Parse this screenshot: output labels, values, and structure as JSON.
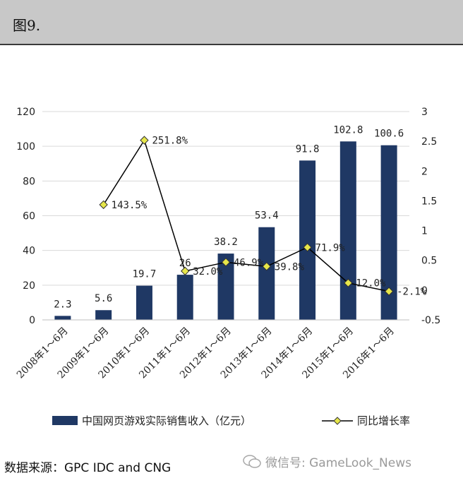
{
  "header": {
    "title": "图9."
  },
  "chart_data": {
    "type": "bar+line",
    "categories": [
      "2008年1～6月",
      "2009年1～6月",
      "2010年1～6月",
      "2011年1～6月",
      "2012年1～6月",
      "2013年1～6月",
      "2014年1～6月",
      "2015年1～6月",
      "2016年1～6月"
    ],
    "series": [
      {
        "name": "中国网页游戏实际销售收入（亿元）",
        "type": "bar",
        "axis": "left",
        "values": [
          2.3,
          5.6,
          19.7,
          26,
          38.2,
          53.4,
          91.8,
          102.8,
          100.6
        ],
        "labels": [
          "2.3",
          "5.6",
          "19.7",
          "26",
          "38.2",
          "53.4",
          "91.8",
          "102.8",
          "100.6"
        ],
        "color": "#1f3864"
      },
      {
        "name": "同比增长率",
        "type": "line",
        "axis": "right",
        "values": [
          null,
          1.435,
          2.518,
          0.32,
          0.469,
          0.398,
          0.719,
          0.12,
          -0.021
        ],
        "labels": [
          "",
          "143.5%",
          "251.8%",
          "32.0%",
          "46.9%",
          "39.8%",
          "71.9%",
          "12.0%",
          "-2.1%"
        ],
        "color": "#000000",
        "marker_color": "#e6e64a"
      }
    ],
    "y_left": {
      "min": 0,
      "max": 120,
      "ticks": [
        "0",
        "20",
        "40",
        "60",
        "80",
        "100",
        "120"
      ]
    },
    "y_right": {
      "min": -0.5,
      "max": 3,
      "ticks": [
        "-0.5",
        "0",
        "0.5",
        "1",
        "1.5",
        "2",
        "2.5",
        "3"
      ]
    },
    "legend": {
      "position": "bottom"
    }
  },
  "footer": {
    "source": "数据来源：GPC IDC and CNG",
    "watermark": "微信号: GameLook_News"
  }
}
